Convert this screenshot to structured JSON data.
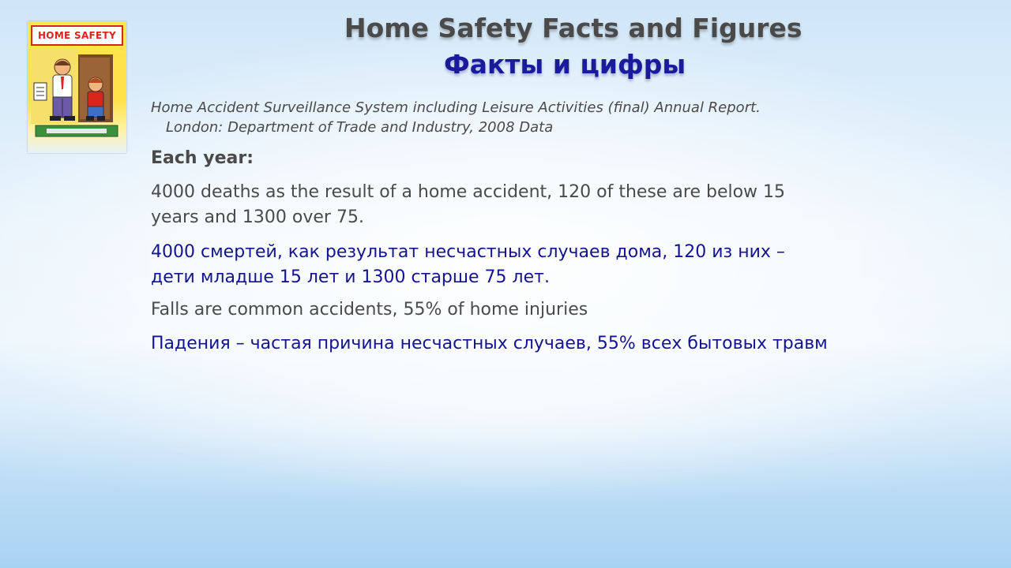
{
  "cover": {
    "title": "HOME SAFETY"
  },
  "slide": {
    "title_en": "Home Safety Facts and Figures",
    "title_ru": "Факты и цифры",
    "source_line1": "Home Accident Surveillance System including Leisure Activities (final) Annual Report.",
    "source_line2": "London: Department of Trade and Industry, 2008 Data",
    "each_year": "Each year:",
    "deaths_en_line1": "4000 deaths as the result of a home accident, 120 of these are below 15",
    "deaths_en_line2": "years and 1300 over 75.",
    "deaths_ru_line1": "4000 смертей, как результат несчастных случаев дома, 120 из них –",
    "deaths_ru_line2": "дети младше 15 лет и 1300 старше 75 лет.",
    "falls_en": "Falls are common accidents,  55% of home injuries",
    "falls_ru": "Падения – частая причина несчастных случаев, 55% всех бытовых травм"
  },
  "colors": {
    "title_en": "#4a4a4a",
    "title_ru": "#1a1a9c",
    "text_grey": "#4a4a4a",
    "text_blue": "#141491",
    "cover_red": "#d9261c",
    "cover_yellow": "#ffe54d"
  }
}
